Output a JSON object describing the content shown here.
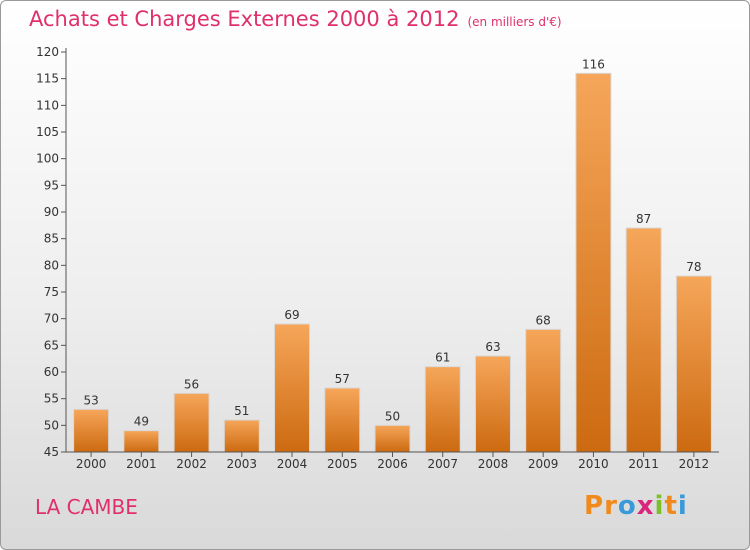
{
  "header": {
    "title": "Achats et Charges Externes 2000 à 2012",
    "unit": "(en milliers d'€)"
  },
  "footer": {
    "commune": "LA CAMBE",
    "logo_letters": [
      "P",
      "r",
      "o",
      "x",
      "i",
      "t",
      "i"
    ],
    "logo_colors": [
      "#f18a1d",
      "#f18a1d",
      "#3a9ad9",
      "#d9257c",
      "#7cbf2a",
      "#f18a1d",
      "#3a9ad9"
    ]
  },
  "chart_data": {
    "type": "bar",
    "title": "Achats et Charges Externes 2000 à 2012",
    "subtitle": "(en milliers d'€)",
    "categories": [
      "2000",
      "2001",
      "2002",
      "2003",
      "2004",
      "2005",
      "2006",
      "2007",
      "2008",
      "2009",
      "2010",
      "2011",
      "2012"
    ],
    "values": [
      53,
      49,
      56,
      51,
      69,
      57,
      50,
      61,
      63,
      68,
      116,
      87,
      78
    ],
    "ylim": [
      45,
      120
    ],
    "yticks": [
      45,
      50,
      55,
      60,
      65,
      70,
      75,
      80,
      85,
      90,
      95,
      100,
      105,
      110,
      115,
      120
    ],
    "grid": false,
    "bar_color_top": "#f6a65a",
    "bar_color_bottom": "#cc6a10"
  }
}
